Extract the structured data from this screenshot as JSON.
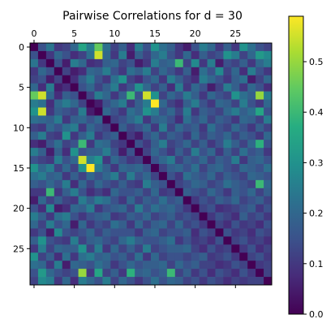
{
  "chart_data": {
    "type": "heatmap",
    "title": "Pairwise Correlations for d = 30",
    "size": 30,
    "x_ticks": [
      0,
      5,
      10,
      15,
      20,
      25
    ],
    "y_ticks": [
      0,
      5,
      10,
      15,
      20,
      25
    ],
    "x_tick_position": "top",
    "colormap": "viridis",
    "grid": false,
    "colorbar": {
      "position": "right",
      "vmin": 0.0,
      "vmax": 0.59,
      "ticks": [
        "0.0",
        "0.1",
        "0.2",
        "0.3",
        "0.4",
        "0.5"
      ],
      "tick_values": [
        0.0,
        0.1,
        0.2,
        0.3,
        0.4,
        0.5
      ]
    },
    "values": [
      [
        0.0,
        0.15,
        0.23,
        0.1,
        0.12,
        0.2,
        0.35,
        0.25,
        0.45,
        0.22,
        0.12,
        0.18,
        0.08,
        0.25,
        0.15,
        0.3,
        0.22,
        0.18,
        0.1,
        0.05,
        0.15,
        0.25,
        0.2,
        0.1,
        0.18,
        0.1,
        0.3,
        0.22,
        0.15,
        0.12
      ],
      [
        0.15,
        0.0,
        0.1,
        0.2,
        0.15,
        0.08,
        0.12,
        0.22,
        0.55,
        0.2,
        0.1,
        0.25,
        0.05,
        0.18,
        0.12,
        0.2,
        0.25,
        0.15,
        0.1,
        0.2,
        0.08,
        0.18,
        0.12,
        0.15,
        0.3,
        0.25,
        0.12,
        0.2,
        0.32,
        0.28
      ],
      [
        0.23,
        0.1,
        0.0,
        0.15,
        0.05,
        0.25,
        0.2,
        0.08,
        0.1,
        0.18,
        0.2,
        0.12,
        0.15,
        0.05,
        0.1,
        0.25,
        0.18,
        0.2,
        0.4,
        0.12,
        0.28,
        0.1,
        0.25,
        0.05,
        0.15,
        0.12,
        0.18,
        0.1,
        0.2,
        0.25
      ],
      [
        0.1,
        0.2,
        0.15,
        0.0,
        0.12,
        0.05,
        0.08,
        0.2,
        0.18,
        0.25,
        0.15,
        0.1,
        0.22,
        0.18,
        0.25,
        0.12,
        0.2,
        0.15,
        0.1,
        0.18,
        0.05,
        0.22,
        0.15,
        0.28,
        0.12,
        0.2,
        0.08,
        0.25,
        0.15,
        0.1
      ],
      [
        0.12,
        0.15,
        0.05,
        0.12,
        0.0,
        0.08,
        0.18,
        0.25,
        0.15,
        0.1,
        0.22,
        0.3,
        0.12,
        0.08,
        0.15,
        0.2,
        0.1,
        0.25,
        0.18,
        0.12,
        0.08,
        0.25,
        0.2,
        0.15,
        0.1,
        0.18,
        0.22,
        0.05,
        0.12,
        0.2
      ],
      [
        0.2,
        0.08,
        0.25,
        0.05,
        0.08,
        0.0,
        0.15,
        0.2,
        0.12,
        0.18,
        0.25,
        0.1,
        0.15,
        0.3,
        0.2,
        0.12,
        0.18,
        0.08,
        0.25,
        0.1,
        0.2,
        0.15,
        0.05,
        0.12,
        0.25,
        0.18,
        0.1,
        0.2,
        0.15,
        0.08
      ],
      [
        0.45,
        0.55,
        0.2,
        0.08,
        0.18,
        0.15,
        0.0,
        0.12,
        0.25,
        0.2,
        0.1,
        0.18,
        0.4,
        0.15,
        0.55,
        0.3,
        0.12,
        0.2,
        0.15,
        0.25,
        0.18,
        0.1,
        0.2,
        0.15,
        0.12,
        0.3,
        0.22,
        0.18,
        0.5,
        0.25
      ],
      [
        0.25,
        0.22,
        0.08,
        0.2,
        0.25,
        0.2,
        0.12,
        0.0,
        0.05,
        0.15,
        0.2,
        0.25,
        0.1,
        0.18,
        0.25,
        0.59,
        0.2,
        0.12,
        0.08,
        0.18,
        0.25,
        0.15,
        0.1,
        0.2,
        0.18,
        0.12,
        0.25,
        0.15,
        0.1,
        0.2
      ],
      [
        0.3,
        0.55,
        0.1,
        0.18,
        0.15,
        0.12,
        0.25,
        0.05,
        0.0,
        0.2,
        0.15,
        0.1,
        0.22,
        0.18,
        0.3,
        0.25,
        0.15,
        0.2,
        0.12,
        0.25,
        0.1,
        0.18,
        0.15,
        0.12,
        0.2,
        0.25,
        0.18,
        0.22,
        0.35,
        0.15
      ],
      [
        0.22,
        0.2,
        0.18,
        0.25,
        0.1,
        0.18,
        0.2,
        0.15,
        0.2,
        0.0,
        0.12,
        0.15,
        0.2,
        0.25,
        0.1,
        0.18,
        0.2,
        0.15,
        0.08,
        0.22,
        0.15,
        0.2,
        0.12,
        0.18,
        0.15,
        0.1,
        0.2,
        0.18,
        0.12,
        0.25
      ],
      [
        0.12,
        0.1,
        0.2,
        0.15,
        0.22,
        0.25,
        0.1,
        0.2,
        0.15,
        0.12,
        0.0,
        0.18,
        0.12,
        0.15,
        0.2,
        0.1,
        0.25,
        0.12,
        0.2,
        0.15,
        0.18,
        0.1,
        0.22,
        0.15,
        0.12,
        0.2,
        0.15,
        0.1,
        0.18,
        0.12
      ],
      [
        0.18,
        0.25,
        0.12,
        0.1,
        0.3,
        0.1,
        0.18,
        0.25,
        0.1,
        0.15,
        0.18,
        0.0,
        0.1,
        0.05,
        0.15,
        0.2,
        0.12,
        0.18,
        0.15,
        0.1,
        0.2,
        0.12,
        0.18,
        0.15,
        0.2,
        0.12,
        0.18,
        0.15,
        0.1,
        0.2
      ],
      [
        0.08,
        0.05,
        0.15,
        0.22,
        0.12,
        0.15,
        0.4,
        0.1,
        0.22,
        0.2,
        0.12,
        0.1,
        0.0,
        0.15,
        0.1,
        0.18,
        0.25,
        0.12,
        0.15,
        0.2,
        0.12,
        0.18,
        0.1,
        0.15,
        0.25,
        0.18,
        0.12,
        0.2,
        0.38,
        0.15
      ],
      [
        0.25,
        0.18,
        0.05,
        0.18,
        0.08,
        0.3,
        0.15,
        0.18,
        0.18,
        0.25,
        0.15,
        0.05,
        0.15,
        0.0,
        0.12,
        0.2,
        0.15,
        0.1,
        0.18,
        0.12,
        0.25,
        0.15,
        0.2,
        0.1,
        0.18,
        0.12,
        0.22,
        0.15,
        0.18,
        0.1
      ],
      [
        0.15,
        0.12,
        0.1,
        0.25,
        0.15,
        0.2,
        0.55,
        0.25,
        0.3,
        0.1,
        0.2,
        0.15,
        0.1,
        0.12,
        0.0,
        0.15,
        0.2,
        0.25,
        0.12,
        0.18,
        0.15,
        0.2,
        0.12,
        0.18,
        0.15,
        0.25,
        0.1,
        0.18,
        0.2,
        0.15
      ],
      [
        0.3,
        0.2,
        0.25,
        0.12,
        0.2,
        0.12,
        0.3,
        0.59,
        0.25,
        0.18,
        0.1,
        0.2,
        0.18,
        0.2,
        0.15,
        0.0,
        0.12,
        0.18,
        0.2,
        0.15,
        0.22,
        0.12,
        0.18,
        0.2,
        0.15,
        0.12,
        0.2,
        0.18,
        0.15,
        0.22
      ],
      [
        0.22,
        0.25,
        0.18,
        0.2,
        0.1,
        0.18,
        0.12,
        0.2,
        0.15,
        0.2,
        0.25,
        0.12,
        0.25,
        0.15,
        0.2,
        0.12,
        0.0,
        0.15,
        0.1,
        0.22,
        0.18,
        0.15,
        0.2,
        0.12,
        0.18,
        0.15,
        0.12,
        0.2,
        0.18,
        0.15
      ],
      [
        0.18,
        0.15,
        0.2,
        0.15,
        0.25,
        0.08,
        0.2,
        0.12,
        0.2,
        0.15,
        0.12,
        0.18,
        0.12,
        0.1,
        0.25,
        0.18,
        0.15,
        0.0,
        0.12,
        0.15,
        0.2,
        0.18,
        0.12,
        0.15,
        0.22,
        0.18,
        0.15,
        0.12,
        0.4,
        0.2
      ],
      [
        0.1,
        0.1,
        0.4,
        0.1,
        0.18,
        0.25,
        0.15,
        0.08,
        0.12,
        0.08,
        0.2,
        0.15,
        0.15,
        0.18,
        0.12,
        0.2,
        0.1,
        0.12,
        0.0,
        0.18,
        0.15,
        0.12,
        0.2,
        0.15,
        0.1,
        0.18,
        0.15,
        0.2,
        0.12,
        0.18
      ],
      [
        0.05,
        0.2,
        0.12,
        0.18,
        0.12,
        0.1,
        0.25,
        0.18,
        0.25,
        0.22,
        0.15,
        0.1,
        0.2,
        0.12,
        0.18,
        0.15,
        0.22,
        0.15,
        0.18,
        0.0,
        0.1,
        0.15,
        0.12,
        0.18,
        0.15,
        0.2,
        0.12,
        0.15,
        0.18,
        0.12
      ],
      [
        0.15,
        0.08,
        0.28,
        0.05,
        0.08,
        0.2,
        0.18,
        0.25,
        0.1,
        0.15,
        0.18,
        0.2,
        0.12,
        0.25,
        0.15,
        0.22,
        0.18,
        0.2,
        0.15,
        0.1,
        0.0,
        0.12,
        0.15,
        0.08,
        0.1,
        0.12,
        0.15,
        0.18,
        0.1,
        0.15
      ],
      [
        0.25,
        0.18,
        0.1,
        0.22,
        0.25,
        0.15,
        0.1,
        0.15,
        0.18,
        0.2,
        0.1,
        0.12,
        0.18,
        0.15,
        0.2,
        0.12,
        0.15,
        0.18,
        0.12,
        0.15,
        0.12,
        0.0,
        0.1,
        0.15,
        0.12,
        0.08,
        0.18,
        0.12,
        0.15,
        0.1
      ],
      [
        0.2,
        0.12,
        0.25,
        0.15,
        0.2,
        0.05,
        0.2,
        0.1,
        0.15,
        0.12,
        0.22,
        0.18,
        0.1,
        0.2,
        0.12,
        0.18,
        0.2,
        0.12,
        0.2,
        0.12,
        0.15,
        0.1,
        0.0,
        0.12,
        0.08,
        0.15,
        0.1,
        0.12,
        0.08,
        0.15
      ],
      [
        0.1,
        0.15,
        0.05,
        0.28,
        0.15,
        0.12,
        0.15,
        0.2,
        0.12,
        0.18,
        0.15,
        0.15,
        0.15,
        0.1,
        0.18,
        0.2,
        0.12,
        0.15,
        0.15,
        0.18,
        0.08,
        0.15,
        0.12,
        0.0,
        0.15,
        0.1,
        0.12,
        0.08,
        0.15,
        0.12
      ],
      [
        0.18,
        0.3,
        0.15,
        0.12,
        0.1,
        0.25,
        0.12,
        0.18,
        0.2,
        0.15,
        0.12,
        0.2,
        0.25,
        0.18,
        0.15,
        0.15,
        0.18,
        0.22,
        0.1,
        0.15,
        0.1,
        0.12,
        0.08,
        0.15,
        0.0,
        0.12,
        0.15,
        0.1,
        0.12,
        0.08
      ],
      [
        0.1,
        0.25,
        0.12,
        0.2,
        0.18,
        0.18,
        0.3,
        0.12,
        0.25,
        0.1,
        0.2,
        0.12,
        0.18,
        0.12,
        0.25,
        0.12,
        0.15,
        0.18,
        0.18,
        0.2,
        0.12,
        0.08,
        0.15,
        0.1,
        0.12,
        0.0,
        0.1,
        0.15,
        0.08,
        0.12
      ],
      [
        0.3,
        0.12,
        0.18,
        0.08,
        0.22,
        0.1,
        0.22,
        0.25,
        0.18,
        0.2,
        0.15,
        0.18,
        0.12,
        0.22,
        0.1,
        0.2,
        0.12,
        0.15,
        0.15,
        0.12,
        0.15,
        0.18,
        0.1,
        0.12,
        0.15,
        0.1,
        0.0,
        0.12,
        0.15,
        0.1
      ],
      [
        0.22,
        0.2,
        0.1,
        0.25,
        0.05,
        0.2,
        0.18,
        0.15,
        0.22,
        0.18,
        0.1,
        0.15,
        0.2,
        0.15,
        0.18,
        0.18,
        0.2,
        0.12,
        0.2,
        0.15,
        0.18,
        0.12,
        0.12,
        0.08,
        0.1,
        0.15,
        0.12,
        0.0,
        0.1,
        0.12
      ],
      [
        0.15,
        0.32,
        0.2,
        0.15,
        0.12,
        0.15,
        0.5,
        0.1,
        0.35,
        0.12,
        0.18,
        0.1,
        0.38,
        0.18,
        0.2,
        0.15,
        0.18,
        0.4,
        0.12,
        0.18,
        0.1,
        0.15,
        0.08,
        0.15,
        0.12,
        0.08,
        0.15,
        0.1,
        0.0,
        0.12
      ],
      [
        0.12,
        0.28,
        0.25,
        0.1,
        0.2,
        0.08,
        0.25,
        0.2,
        0.15,
        0.25,
        0.12,
        0.2,
        0.15,
        0.1,
        0.15,
        0.22,
        0.15,
        0.2,
        0.18,
        0.12,
        0.15,
        0.1,
        0.15,
        0.12,
        0.08,
        0.12,
        0.1,
        0.12,
        0.12,
        0.0
      ]
    ]
  }
}
